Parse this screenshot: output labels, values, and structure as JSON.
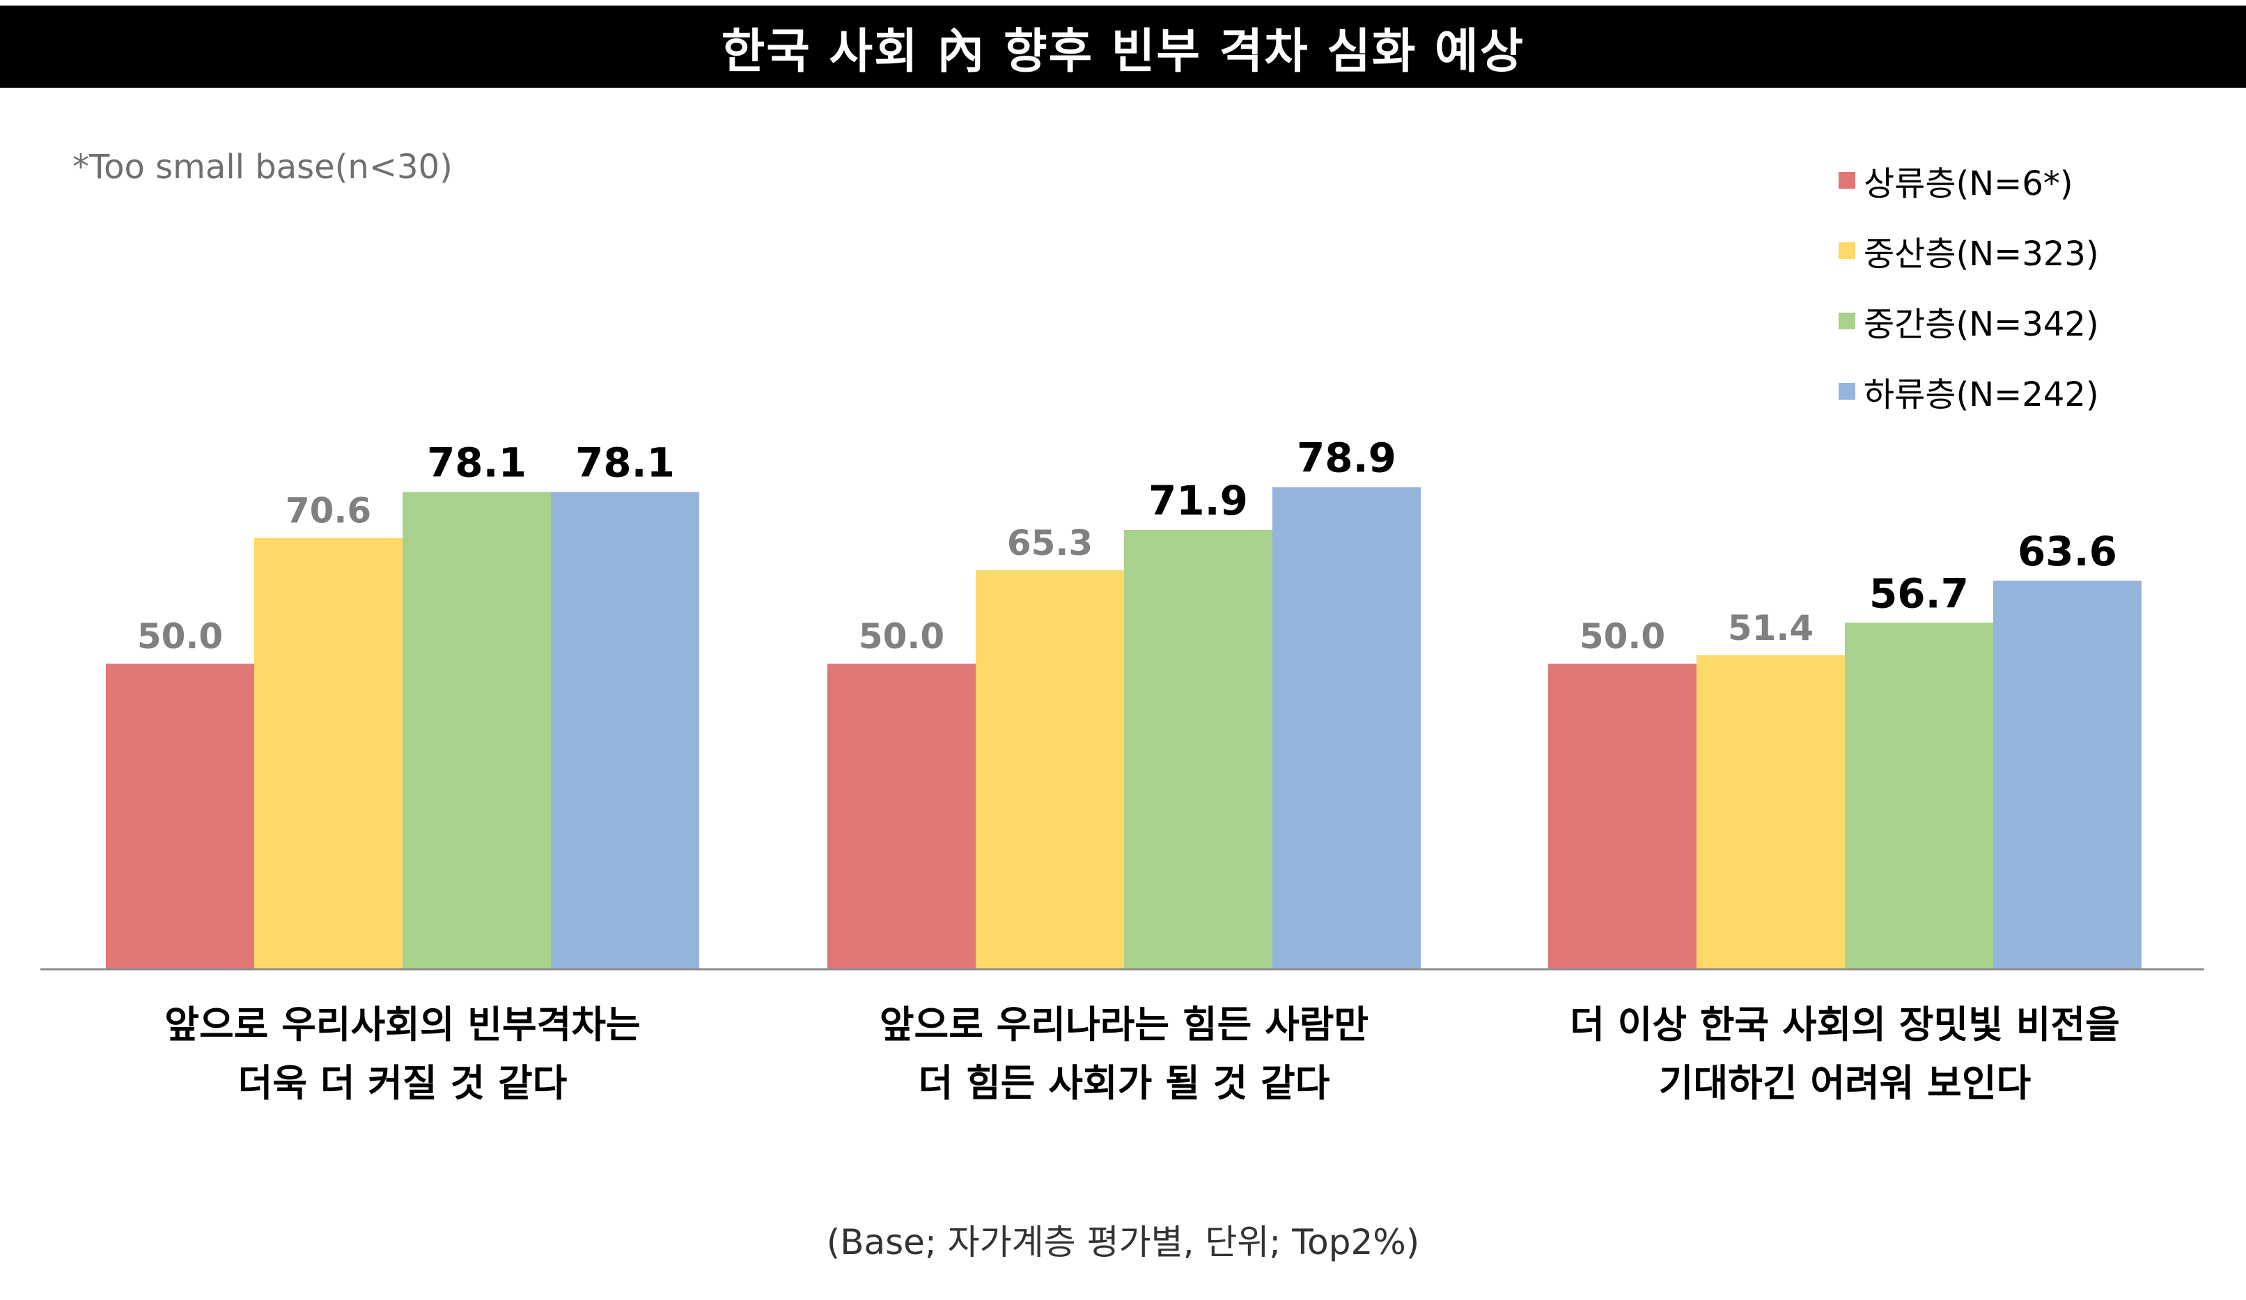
{
  "title": "한국 사회 內 향후 빈부 격차 심화 예상",
  "note": "*Too small base(n<30)",
  "footnote": "(Base; 자가계층 평가별, 단위; Top2%)",
  "chart_data": {
    "type": "bar",
    "categories": [
      [
        "앞으로 우리사회의 빈부격차는",
        "더욱 더 커질 것 같다"
      ],
      [
        "앞으로 우리나라는 힘든 사람만",
        "더 힘든 사회가 될 것 같다"
      ],
      [
        "더 이상 한국 사회의 장밋빛 비전을",
        "기대하긴 어려워 보인다"
      ]
    ],
    "series": [
      {
        "name": "상류층(N=6*)",
        "color": "#e07775",
        "values": [
          50.0,
          50.0,
          50.0
        ],
        "label_color": "#808080"
      },
      {
        "name": "중산층(N=323)",
        "color": "#fdd969",
        "values": [
          70.6,
          65.3,
          51.4
        ],
        "label_color": "#808080"
      },
      {
        "name": "중간층(N=342)",
        "color": "#a8d18d",
        "values": [
          78.1,
          71.9,
          56.7
        ],
        "label_color": "#000000"
      },
      {
        "name": "하류층(N=242)",
        "color": "#95b4dc",
        "values": [
          78.1,
          78.9,
          63.6
        ],
        "label_color": "#000000"
      }
    ],
    "value_format": "0.0",
    "legend_position": "top-right",
    "grid": false,
    "value_axis_baseline": 0
  }
}
